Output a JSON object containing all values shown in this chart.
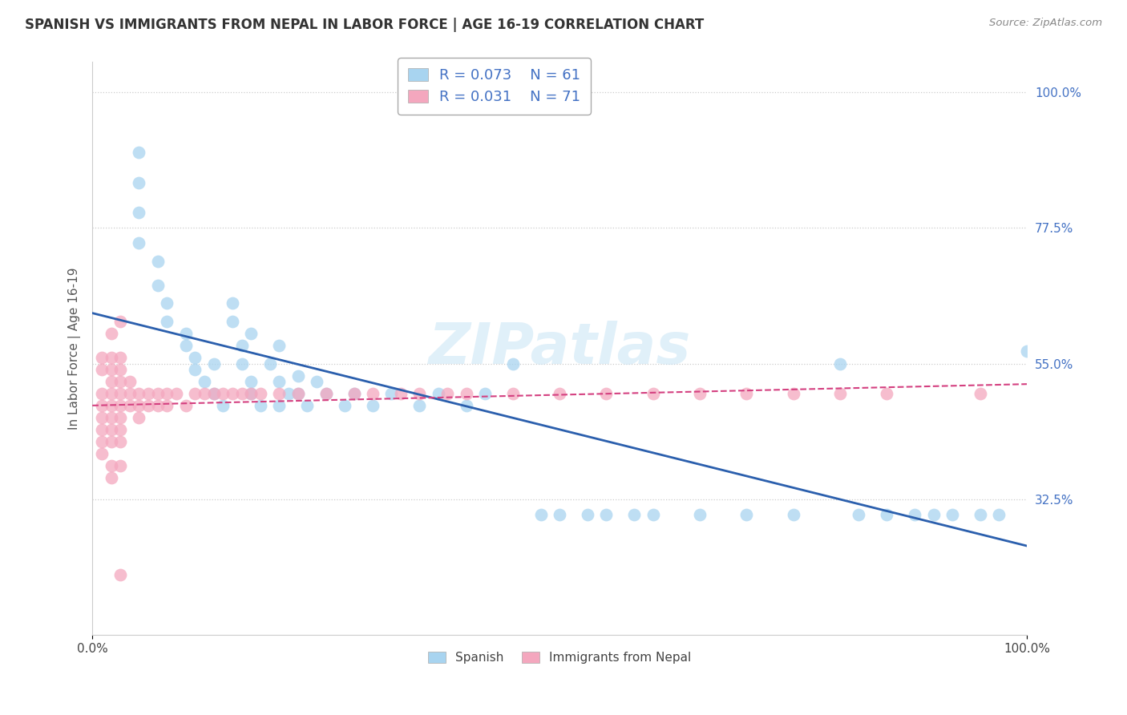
{
  "title": "SPANISH VS IMMIGRANTS FROM NEPAL IN LABOR FORCE | AGE 16-19 CORRELATION CHART",
  "source": "Source: ZipAtlas.com",
  "ylabel": "In Labor Force | Age 16-19",
  "series1_label": "Spanish",
  "series1_color": "#a8d4f0",
  "series1_line_color": "#2b5fad",
  "series1_R": "0.073",
  "series1_N": "61",
  "series2_label": "Immigrants from Nepal",
  "series2_color": "#f4a7be",
  "series2_line_color": "#d44080",
  "series2_R": "0.031",
  "series2_N": "71",
  "watermark": "ZIPatlas",
  "background_color": "#ffffff",
  "title_fontsize": 12,
  "xlim": [
    0,
    100
  ],
  "ylim": [
    10,
    105
  ],
  "yticks_right": [
    32.5,
    55.0,
    77.5,
    100.0
  ],
  "xticks": [
    0,
    100
  ],
  "spanish_x": [
    5,
    5,
    5,
    5,
    7,
    7,
    8,
    8,
    10,
    10,
    11,
    11,
    12,
    13,
    13,
    14,
    15,
    16,
    16,
    17,
    17,
    18,
    19,
    20,
    20,
    21,
    22,
    22,
    23,
    24,
    25,
    27,
    28,
    30,
    32,
    35,
    37,
    40,
    42,
    45,
    48,
    50,
    53,
    55,
    58,
    60,
    65,
    70,
    75,
    80,
    82,
    85,
    88,
    90,
    92,
    95,
    97,
    100,
    15,
    17,
    20
  ],
  "spanish_y": [
    90,
    85,
    80,
    75,
    72,
    68,
    65,
    62,
    60,
    58,
    56,
    54,
    52,
    55,
    50,
    48,
    62,
    58,
    55,
    52,
    50,
    48,
    55,
    52,
    48,
    50,
    53,
    50,
    48,
    52,
    50,
    48,
    50,
    48,
    50,
    48,
    50,
    48,
    50,
    55,
    30,
    30,
    30,
    30,
    30,
    30,
    30,
    30,
    30,
    55,
    30,
    30,
    30,
    30,
    30,
    30,
    30,
    57,
    65,
    60,
    58
  ],
  "nepal_x": [
    1,
    1,
    1,
    1,
    1,
    1,
    1,
    1,
    2,
    2,
    2,
    2,
    2,
    2,
    2,
    2,
    2,
    2,
    2,
    3,
    3,
    3,
    3,
    3,
    3,
    3,
    3,
    3,
    3,
    4,
    4,
    4,
    5,
    5,
    5,
    6,
    6,
    7,
    7,
    8,
    8,
    9,
    10,
    11,
    12,
    13,
    14,
    15,
    16,
    17,
    18,
    20,
    22,
    25,
    28,
    30,
    33,
    35,
    38,
    40,
    45,
    50,
    55,
    60,
    65,
    70,
    75,
    80,
    85,
    95,
    3
  ],
  "nepal_y": [
    50,
    48,
    46,
    42,
    44,
    54,
    56,
    40,
    50,
    48,
    52,
    54,
    46,
    44,
    56,
    42,
    38,
    36,
    60,
    50,
    48,
    52,
    54,
    46,
    44,
    56,
    42,
    38,
    20,
    50,
    48,
    52,
    50,
    48,
    46,
    50,
    48,
    50,
    48,
    50,
    48,
    50,
    48,
    50,
    50,
    50,
    50,
    50,
    50,
    50,
    50,
    50,
    50,
    50,
    50,
    50,
    50,
    50,
    50,
    50,
    50,
    50,
    50,
    50,
    50,
    50,
    50,
    50,
    50,
    50,
    62
  ]
}
